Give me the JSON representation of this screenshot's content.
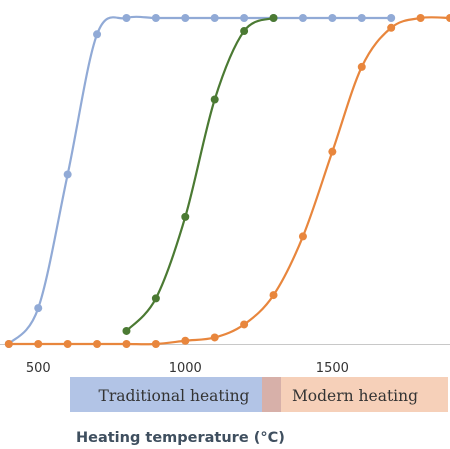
{
  "chart_data": {
    "type": "line",
    "xlabel": "Heating temperature (°C)",
    "ylabel": "",
    "title": "",
    "xlim": [
      370,
      1900
    ],
    "ylim": [
      0,
      1
    ],
    "x_ticks": [
      500,
      1000,
      1500
    ],
    "x_tick_labels": [
      "500",
      "1000",
      "1500"
    ],
    "grid": false,
    "legend": "none",
    "series": [
      {
        "color": "#91aad6",
        "x": [
          400,
          500,
          600,
          700,
          800,
          900,
          1000,
          1100,
          1200,
          1300,
          1400,
          1500,
          1600,
          1700
        ],
        "values": [
          0.0,
          0.11,
          0.52,
          0.95,
          1.0,
          1.0,
          1.0,
          1.0,
          1.0,
          1.0,
          1.0,
          1.0,
          1.0,
          1.0
        ]
      },
      {
        "color": "#4b7a33",
        "x": [
          800,
          900,
          1000,
          1100,
          1200,
          1300
        ],
        "values": [
          0.04,
          0.14,
          0.39,
          0.75,
          0.96,
          1.0
        ]
      },
      {
        "color": "#e8863d",
        "x": [
          400,
          500,
          600,
          700,
          800,
          900,
          1000,
          1100,
          1200,
          1300,
          1400,
          1500,
          1600,
          1700,
          1800,
          1900
        ],
        "values": [
          0.0,
          0.0,
          0.0,
          0.0,
          0.0,
          0.0,
          0.01,
          0.02,
          0.06,
          0.15,
          0.33,
          0.59,
          0.85,
          0.97,
          1.0,
          1.0
        ]
      }
    ],
    "bands": [
      {
        "label": "Traditional heating",
        "color": "#b2c4e6"
      },
      {
        "label": "Modern heating",
        "color": "#f6d0b9"
      },
      {
        "label": "",
        "color": "#d7b0a9"
      }
    ]
  }
}
